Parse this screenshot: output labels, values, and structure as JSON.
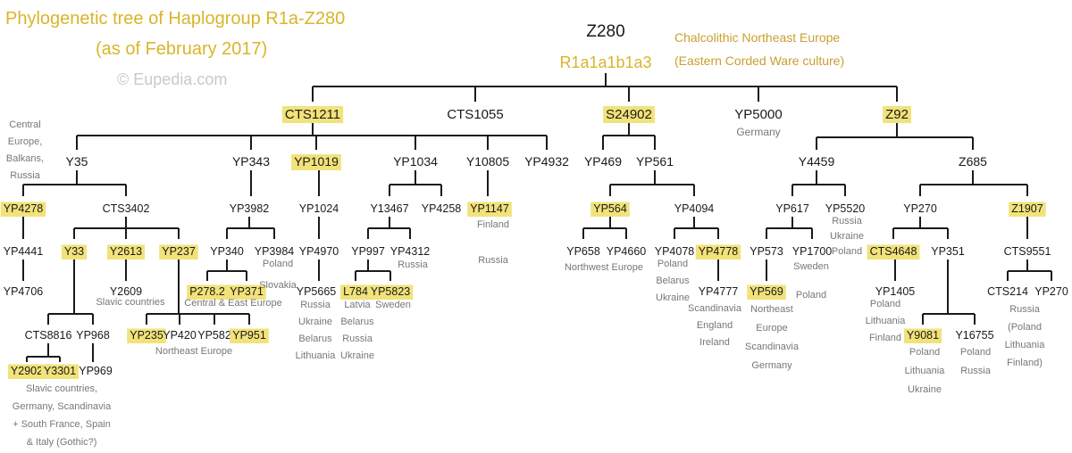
{
  "header": {
    "title": "Phylogenetic tree of Haplogroup R1a-Z280",
    "subtitle": "(as of February 2017)",
    "copyright": "© Eupedia.com"
  },
  "root": {
    "snp": "Z280",
    "isogg": "R1a1a1b1a3",
    "culture_line1": "Chalcolithic Northeast Europe",
    "culture_line2": "(Eastern Corded Ware culture)"
  },
  "colors": {
    "highlight": "#f2e27a",
    "line": "#1a1a1a",
    "note": "#777777",
    "accent": "#d9b52a"
  },
  "nodes": [
    {
      "id": "cts1211",
      "label": "CTS1211",
      "hl": true
    },
    {
      "id": "cts1055",
      "label": "CTS1055"
    },
    {
      "id": "s24902",
      "label": "S24902",
      "hl": true
    },
    {
      "id": "yp5000",
      "label": "YP5000"
    },
    {
      "id": "z92",
      "label": "Z92",
      "hl": true
    },
    {
      "id": "y35",
      "label": "Y35"
    },
    {
      "id": "yp343",
      "label": "YP343"
    },
    {
      "id": "yp1019",
      "label": "YP1019",
      "hl": true
    },
    {
      "id": "yp1034",
      "label": "YP1034"
    },
    {
      "id": "y10805",
      "label": "Y10805"
    },
    {
      "id": "yp4932",
      "label": "YP4932"
    },
    {
      "id": "yp469",
      "label": "YP469"
    },
    {
      "id": "yp561",
      "label": "YP561"
    },
    {
      "id": "y4459",
      "label": "Y4459"
    },
    {
      "id": "z685",
      "label": "Z685"
    },
    {
      "id": "yp4278",
      "label": "YP4278",
      "hl": true
    },
    {
      "id": "cts3402",
      "label": "CTS3402"
    },
    {
      "id": "yp3982",
      "label": "YP3982"
    },
    {
      "id": "yp1024",
      "label": "YP1024"
    },
    {
      "id": "y13467",
      "label": "Y13467"
    },
    {
      "id": "yp4258",
      "label": "YP4258"
    },
    {
      "id": "yp1147",
      "label": "YP1147",
      "hl": true
    },
    {
      "id": "yp564",
      "label": "YP564",
      "hl": true
    },
    {
      "id": "yp4094",
      "label": "YP4094"
    },
    {
      "id": "yp617",
      "label": "YP617"
    },
    {
      "id": "yp5520",
      "label": "YP5520"
    },
    {
      "id": "yp270a",
      "label": "YP270"
    },
    {
      "id": "z1907",
      "label": "Z1907",
      "hl": true
    },
    {
      "id": "yp4441",
      "label": "YP4441"
    },
    {
      "id": "y33",
      "label": "Y33",
      "hl": true
    },
    {
      "id": "y2613",
      "label": "Y2613",
      "hl": true
    },
    {
      "id": "yp237",
      "label": "YP237",
      "hl": true
    },
    {
      "id": "yp340",
      "label": "YP340"
    },
    {
      "id": "yp3984",
      "label": "YP3984"
    },
    {
      "id": "yp4970",
      "label": "YP4970"
    },
    {
      "id": "yp997",
      "label": "YP997"
    },
    {
      "id": "yp4312",
      "label": "YP4312"
    },
    {
      "id": "yp658",
      "label": "YP658"
    },
    {
      "id": "yp4660",
      "label": "YP4660"
    },
    {
      "id": "yp4078",
      "label": "YP4078"
    },
    {
      "id": "yp4778",
      "label": "YP4778",
      "hl": true
    },
    {
      "id": "yp573",
      "label": "YP573"
    },
    {
      "id": "yp1700",
      "label": "YP1700"
    },
    {
      "id": "cts4648",
      "label": "CTS4648",
      "hl": true
    },
    {
      "id": "yp351",
      "label": "YP351"
    },
    {
      "id": "cts9551",
      "label": "CTS9551"
    },
    {
      "id": "yp4706",
      "label": "YP4706"
    },
    {
      "id": "y2609",
      "label": "Y2609"
    },
    {
      "id": "p2782",
      "label": "P278.2",
      "hl": true
    },
    {
      "id": "yp371",
      "label": "YP371",
      "hl": true
    },
    {
      "id": "yp5665",
      "label": "YP5665"
    },
    {
      "id": "l784",
      "label": "L784",
      "hl": true
    },
    {
      "id": "yp5823",
      "label": "YP5823",
      "hl": true
    },
    {
      "id": "yp4777",
      "label": "YP4777"
    },
    {
      "id": "yp569",
      "label": "YP569",
      "hl": true
    },
    {
      "id": "yp1405",
      "label": "YP1405"
    },
    {
      "id": "cts214",
      "label": "CTS214"
    },
    {
      "id": "yp270b",
      "label": "YP270"
    },
    {
      "id": "cts8816",
      "label": "CTS8816"
    },
    {
      "id": "yp968",
      "label": "YP968"
    },
    {
      "id": "yp235",
      "label": "YP235",
      "hl": true
    },
    {
      "id": "yp420",
      "label": "YP420"
    },
    {
      "id": "yp582",
      "label": "YP582"
    },
    {
      "id": "yp951",
      "label": "YP951",
      "hl": true
    },
    {
      "id": "y9081",
      "label": "Y9081",
      "hl": true
    },
    {
      "id": "y16755",
      "label": "Y16755"
    },
    {
      "id": "y2902",
      "label": "Y2902",
      "hl": true
    },
    {
      "id": "y3301",
      "label": "Y3301",
      "hl": true
    },
    {
      "id": "yp969",
      "label": "YP969"
    }
  ],
  "notes": [
    {
      "id": "n-germany",
      "text": "Germany"
    },
    {
      "id": "n-y35",
      "text": "Central\nEurope,\nBalkans,\nRussia"
    },
    {
      "id": "n-yp1147",
      "text": "Finland\n\nRussia"
    },
    {
      "id": "n-yp5520",
      "text": "Russia\nUkraine\nPoland"
    },
    {
      "id": "n-yp3984",
      "text": "Poland\n\nSlovakia"
    },
    {
      "id": "n-yp4312",
      "text": "Russia"
    },
    {
      "id": "n-yp4660",
      "text": "Northwest Europe"
    },
    {
      "id": "n-yp4078",
      "text": "Poland\nBelarus\nUkraine"
    },
    {
      "id": "n-yp1700",
      "text": "Sweden\n\nPoland"
    },
    {
      "id": "n-y2609",
      "text": "Slavic countries"
    },
    {
      "id": "n-yp371",
      "text": "Central & East Europe"
    },
    {
      "id": "n-yp5665",
      "text": "Russia\nUkraine\nBelarus\nLithuania"
    },
    {
      "id": "n-l784",
      "text": "Latvia\nBelarus\nRussia\nUkraine"
    },
    {
      "id": "n-yp5823",
      "text": "Sweden"
    },
    {
      "id": "n-yp4777",
      "text": "Scandinavia\nEngland\nIreland"
    },
    {
      "id": "n-yp569",
      "text": "Northeast\nEurope\nScandinavia\nGermany"
    },
    {
      "id": "n-yp1405",
      "text": "Poland\nLithuania\nFinland"
    },
    {
      "id": "n-cts214",
      "text": "Russia\n(Poland\nLithuania\nFinland)"
    },
    {
      "id": "n-yp420",
      "text": "Northeast Europe"
    },
    {
      "id": "n-y9081",
      "text": "Poland\nLithuania\nUkraine"
    },
    {
      "id": "n-y16755",
      "text": "Poland\nRussia"
    },
    {
      "id": "n-y2902",
      "text": "Slavic countries,\nGermany, Scandinavia\n+ South France, Spain\n& Italy (Gothic?)"
    }
  ]
}
